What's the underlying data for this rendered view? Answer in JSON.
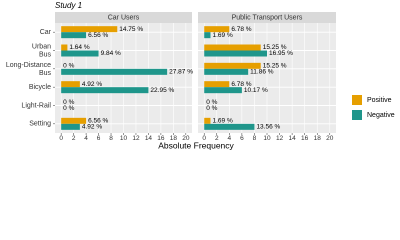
{
  "chart_data": {
    "type": "bar",
    "orientation": "horizontal",
    "title": "Study 1",
    "x_label": "Absolute Frequency",
    "categories": [
      "Car",
      "Urban Bus",
      "Long-Distance Bus",
      "Bicycle",
      "Light-Rail",
      "Setting"
    ],
    "xlim": [
      0,
      20
    ],
    "xticks": [
      0,
      2,
      4,
      6,
      8,
      10,
      12,
      14,
      16,
      18,
      20
    ],
    "grid": true,
    "legend": "right",
    "facets": [
      {
        "title": "Car Users",
        "series": [
          {
            "name": "Positive",
            "color": "#E69F00",
            "values": [
              9,
              1,
              0,
              3,
              0,
              4
            ],
            "value_labels": [
              "14.75 %",
              "1.64 %",
              "0 %",
              "4.92 %",
              "0 %",
              "6.56 %"
            ]
          },
          {
            "name": "Negative",
            "color": "#1F968B",
            "values": [
              4,
              6,
              17,
              14,
              0,
              3
            ],
            "value_labels": [
              "6.56 %",
              "9.84 %",
              "27.87 %",
              "22.95 %",
              "0 %",
              "4.92 %"
            ]
          }
        ]
      },
      {
        "title": "Public Transport Users",
        "series": [
          {
            "name": "Positive",
            "color": "#E69F00",
            "values": [
              4,
              9,
              9,
              4,
              0,
              1
            ],
            "value_labels": [
              "6.78 %",
              "15.25 %",
              "15.25 %",
              "6.78 %",
              "0 %",
              "1.69 %"
            ]
          },
          {
            "name": "Negative",
            "color": "#1F968B",
            "values": [
              1,
              10,
              7,
              6,
              0,
              8
            ],
            "value_labels": [
              "1.69 %",
              "16.95 %",
              "11.86 %",
              "10.17 %",
              "0 %",
              "13.56 %"
            ]
          }
        ]
      }
    ]
  }
}
